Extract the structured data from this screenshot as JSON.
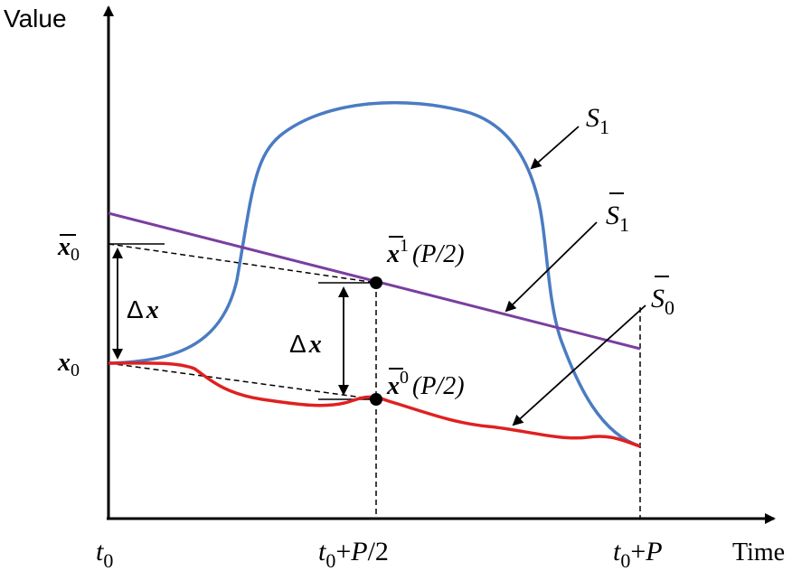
{
  "axes": {
    "y_label": "Value",
    "x_label": "Time"
  },
  "ticks": {
    "t0": {
      "main": "t",
      "sub": "0"
    },
    "t_half": {
      "main": "t",
      "sub": "0",
      "rest": "+",
      "var": "P",
      "tail": "/2"
    },
    "t_full": {
      "main": "t",
      "sub": "0",
      "rest": "+",
      "var": "P"
    }
  },
  "y_marks": {
    "xbar0": {
      "main": "x",
      "sub": "0"
    },
    "x0": {
      "main": "x",
      "sub": "0"
    }
  },
  "annotations": {
    "delta_left": {
      "sym": "Δ",
      "var": "x"
    },
    "delta_mid": {
      "sym": "Δ",
      "var": "x"
    },
    "xbar1": {
      "main": "x",
      "sup": "1",
      "arg": "(P/2)"
    },
    "xbar0_point": {
      "main": "x",
      "sup": "0",
      "arg": "(P/2)"
    }
  },
  "curves": {
    "S1": {
      "main": "S",
      "sub": "1",
      "color": "#4a7cc2"
    },
    "S1bar": {
      "main": "S",
      "sub": "1",
      "color": "#7a3ea0"
    },
    "S0bar": {
      "main": "S",
      "sub": "0",
      "color": "#e02020"
    }
  }
}
